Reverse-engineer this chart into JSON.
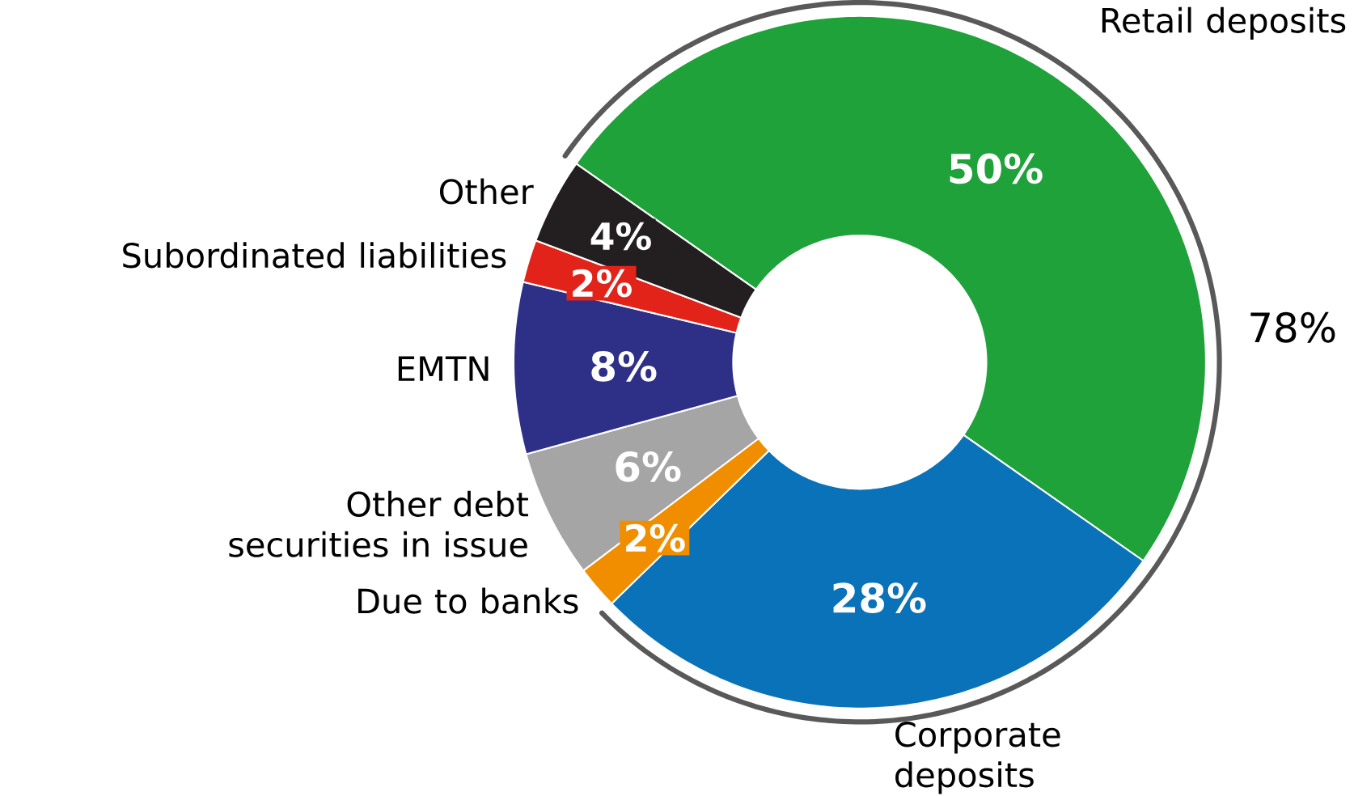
{
  "chart_data": {
    "type": "donut",
    "categories": [
      "Retail deposits",
      "Corporate deposits",
      "Due to banks",
      "Other debt securities in issue",
      "EMTN",
      "Subordinated liabilities",
      "Other"
    ],
    "values": [
      50,
      28,
      2,
      6,
      8,
      2,
      4
    ],
    "colors": [
      "#1fa23a",
      "#0a72b8",
      "#f18e00",
      "#a5a5a5",
      "#2e3087",
      "#e2231a",
      "#231f20"
    ],
    "value_labels": [
      "50%",
      "28%",
      "2%",
      "6%",
      "8%",
      "2%",
      "4%"
    ],
    "annotations": [
      "78%"
    ]
  }
}
